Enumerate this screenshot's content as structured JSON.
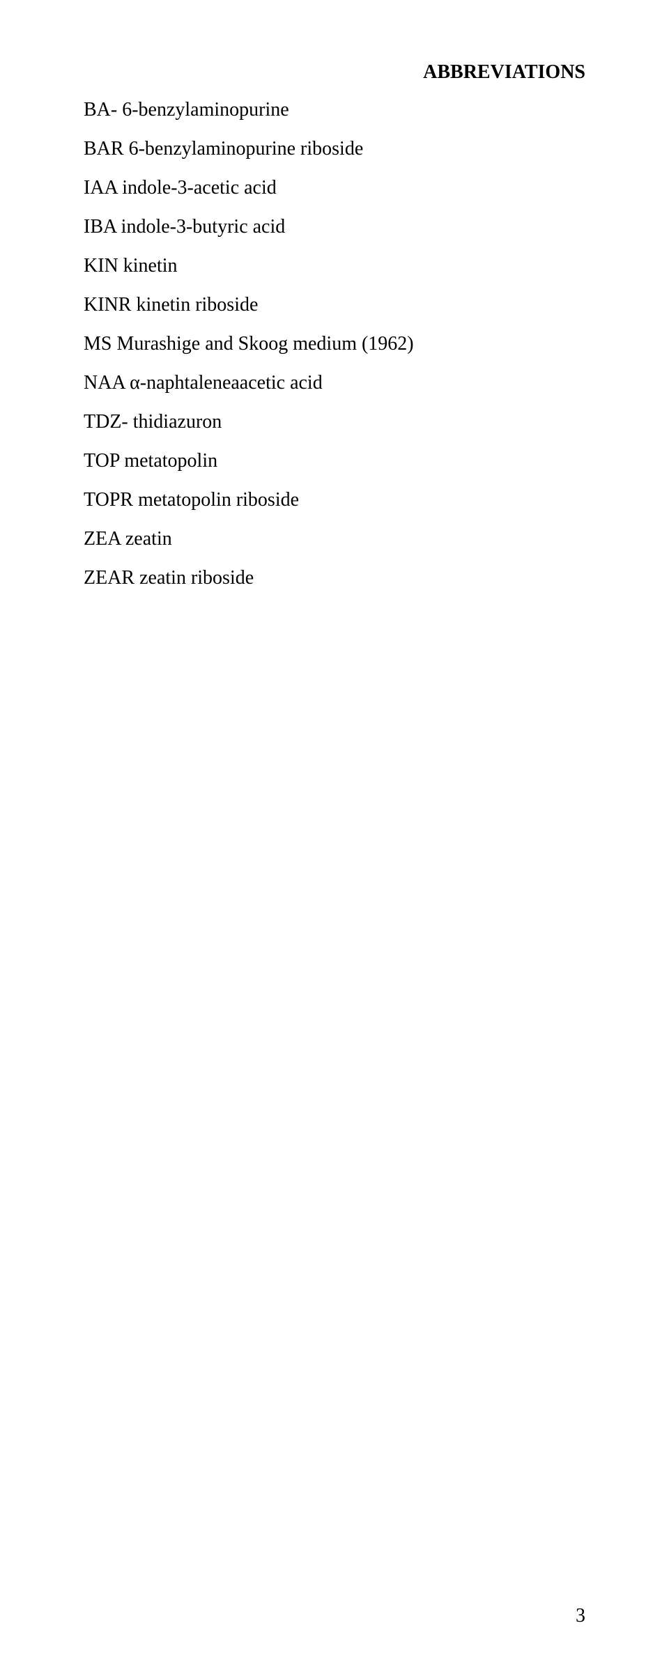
{
  "heading": "ABBREVIATIONS",
  "lines": [
    "BA- 6-benzylaminopurine",
    "BAR 6-benzylaminopurine riboside",
    "IAA indole-3-acetic acid",
    "IBA indole-3-butyric acid",
    "KIN kinetin",
    "KINR kinetin riboside",
    "MS Murashige and Skoog medium (1962)",
    "NAA α-naphtaleneaacetic acid",
    "TDZ- thidiazuron",
    "TOP metatopolin",
    "TOPR metatopolin riboside",
    "ZEA zeatin",
    "ZEAR zeatin riboside"
  ],
  "page_number": "3"
}
